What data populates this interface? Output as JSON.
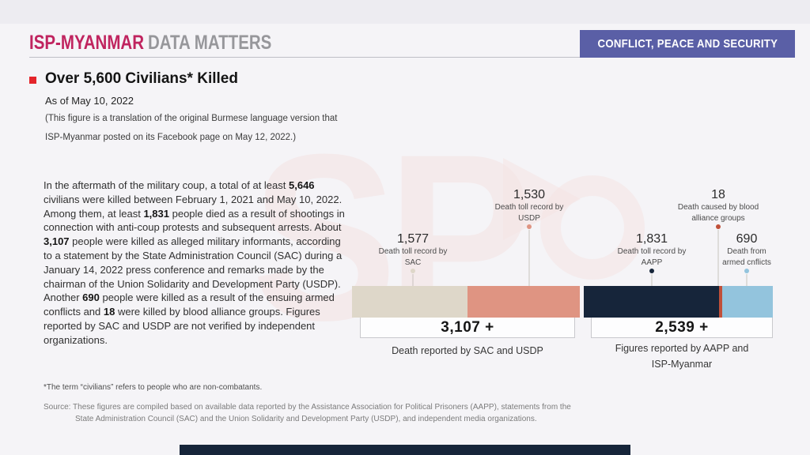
{
  "header": {
    "brand_primary": "ISP-MYANMAR",
    "brand_secondary": "DATA MATTERS",
    "badge": "CONFLICT, PEACE AND SECURITY"
  },
  "title_block": {
    "title": "Over 5,600 Civilians* Killed",
    "as_of": "As of May 10, 2022",
    "note_line1": "(This figure is a translation of the original Burmese language version that",
    "note_line2": "ISP-Myanmar posted on its Facebook page on May 12, 2022.)"
  },
  "body": {
    "segments": [
      {
        "t": "In the aftermath of the military coup, a total of at least "
      },
      {
        "t": "5,646",
        "b": true
      },
      {
        "t": " civilians were killed between February 1, 2021 and May 10, 2022. Among them, at least "
      },
      {
        "t": "1,831",
        "b": true
      },
      {
        "t": " people died as a result of shootings in connection with anti-coup protests and subsequent arrests. About "
      },
      {
        "t": "3,107",
        "b": true
      },
      {
        "t": " people were killed as alleged military informants, according to a statement by the State Administration Council (SAC) during a January 14, 2022 press conference and remarks made by the chairman of the Union Solidarity and Development Party (USDP). Another "
      },
      {
        "t": "690",
        "b": true
      },
      {
        "t": " people were killed as a result of the ensuing armed conflicts and "
      },
      {
        "t": "18",
        "b": true
      },
      {
        "t": " were killed by blood alliance groups. Figures reported by SAC and USDP are not verified by independent organizations."
      }
    ]
  },
  "footnote": "*The term “civilians” refers to people who are non-combatants.",
  "source": {
    "line1": "Source: These figures are compiled based on available data reported by the Assistance Association for Political Prisoners (AAPP), statements from the",
    "line2": "State Administration Council (SAC) and the Union Solidarity and Development Party (USDP), and independent media organizations."
  },
  "chart_data": {
    "type": "bar",
    "title": "Over 5,600 Civilians* Killed",
    "subtitle": "As of May 10, 2022",
    "orientation": "horizontal-stacked",
    "groups": [
      {
        "total_value": 3107,
        "total_label": "3,107 +",
        "caption": "Death reported by SAC and USDP",
        "segments": [
          {
            "name": "SAC",
            "value": 1577,
            "label": "1,577",
            "desc_lines": [
              "Death toll record by",
              "SAC"
            ],
            "color": "#ded7c9"
          },
          {
            "name": "USDP",
            "value": 1530,
            "label": "1,530",
            "desc_lines": [
              "Death toll record by",
              "USDP"
            ],
            "color": "#df9482"
          }
        ]
      },
      {
        "total_value": 2539,
        "total_label": "2,539 +",
        "caption_lines": [
          "Figures reported by AAPP and",
          "ISP-Myanmar"
        ],
        "segments": [
          {
            "name": "AAPP",
            "value": 1831,
            "label": "1,831",
            "desc_lines": [
              "Death toll record by",
              "AAPP"
            ],
            "color": "#16253a"
          },
          {
            "name": "blood alliance groups",
            "value": 18,
            "label": "18",
            "desc_lines": [
              "Death caused by blood",
              "alliance groups"
            ],
            "color": "#c0503a"
          },
          {
            "name": "armed conflicts",
            "value": 690,
            "label": "690",
            "desc_lines": [
              "Death from",
              "armed cnflicts"
            ],
            "color": "#93c4dd"
          }
        ]
      }
    ]
  },
  "colors": {
    "brand_magenta": "#c0245f",
    "brand_gray": "#97979b",
    "badge_bg": "#5a5fa6",
    "accent_red": "#e4252b",
    "bar_sac": "#ded7c9",
    "bar_usdp": "#df9482",
    "bar_aapp": "#16253a",
    "bar_blood_alliance": "#c0503a",
    "bar_armed_conflicts": "#93c4dd",
    "footer_bar": "#16253a",
    "watermark_pink": "#f4e3e3",
    "page_bg": "#f5f4f7"
  }
}
